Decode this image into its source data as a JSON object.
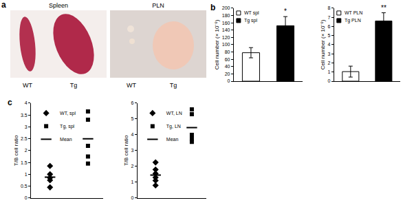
{
  "panel_a": {
    "label": "a",
    "images": [
      {
        "title": "Spleen",
        "labels": [
          "WT",
          "Tg"
        ]
      },
      {
        "title": "PLN",
        "labels": [
          "WT",
          "Tg"
        ]
      }
    ]
  },
  "chart_data": [
    {
      "type": "bar",
      "annotations": [
        {
          "text": "b"
        },
        {
          "text": "*",
          "series": "Tg spl"
        }
      ],
      "ylabel": "Cell number (× 10⁻⁶)",
      "categories": [
        null,
        null
      ],
      "series": [
        {
          "name": "WT spl",
          "color": "#ffffff",
          "values": [
            78,
            null
          ],
          "errors": [
            14,
            null
          ]
        },
        {
          "name": "Tg spl",
          "color": "#000000",
          "values": [
            null,
            152
          ],
          "errors": [
            null,
            25
          ]
        }
      ],
      "ylim": [
        0,
        200
      ],
      "yticks": [
        0,
        20,
        40,
        60,
        80,
        100,
        120,
        140,
        160,
        180,
        200
      ],
      "legend": "upper left",
      "tick_labels": "y"
    },
    {
      "type": "bar",
      "annotations": [
        {
          "text": "**",
          "series": "Tg PLN"
        }
      ],
      "ylabel": "Cell number (× 10⁻⁶)",
      "categories": [
        null,
        null
      ],
      "series": [
        {
          "name": "WT PLN",
          "color": "#ffffff",
          "values": [
            1.05,
            null
          ],
          "errors": [
            0.6,
            null
          ]
        },
        {
          "name": "Tg PLN",
          "color": "#000000",
          "values": [
            null,
            6.6
          ],
          "errors": [
            null,
            0.9
          ]
        }
      ],
      "ylim": [
        0,
        8
      ],
      "yticks": [
        0,
        1,
        2,
        3,
        4,
        5,
        6,
        7,
        8
      ],
      "legend": "upper left",
      "tick_labels": "y"
    },
    {
      "type": "scatter",
      "annotations": [
        {
          "text": "c"
        }
      ],
      "ylabel": "T/B cell ratio",
      "series": [
        {
          "name": "WT, spl",
          "marker": "diamond",
          "color": "#000000",
          "x": [
            1,
            1,
            1,
            1,
            1
          ],
          "values": [
            1.35,
            1.0,
            0.85,
            0.75,
            0.45
          ]
        },
        {
          "name": "Tg, spl",
          "marker": "square",
          "color": "#000000",
          "x": [
            2,
            2,
            2,
            2,
            2
          ],
          "values": [
            3.65,
            3.3,
            2.2,
            1.75,
            1.45
          ]
        },
        {
          "name": "Mean",
          "marker": "dash",
          "color": "#000000",
          "x": [
            1,
            2
          ],
          "values": [
            0.88,
            2.5
          ]
        }
      ],
      "xlim": [
        0.5,
        2.4
      ],
      "xticks": [],
      "ylim": [
        0,
        4
      ],
      "yticks": [
        0,
        0.5,
        1,
        1.5,
        2,
        2.5,
        3,
        3.5,
        4
      ],
      "legend": "upper left",
      "tick_labels": "y"
    },
    {
      "type": "scatter",
      "ylabel": "T/B cell ratio",
      "series": [
        {
          "name": "WT, LN",
          "marker": "diamond",
          "color": "#000000",
          "x": [
            1,
            1,
            1,
            1,
            1,
            1
          ],
          "values": [
            2.25,
            1.8,
            1.55,
            1.3,
            1.1,
            0.8
          ]
        },
        {
          "name": "Tg, LN",
          "marker": "square",
          "color": "#000000",
          "x": [
            2,
            2,
            2,
            2,
            2
          ],
          "values": [
            5.6,
            5.3,
            4.0,
            3.75,
            3.55
          ]
        },
        {
          "name": "Mean",
          "marker": "dash",
          "color": "#000000",
          "x": [
            1,
            2
          ],
          "values": [
            1.45,
            4.45
          ]
        }
      ],
      "xlim": [
        0.5,
        2.4
      ],
      "xticks": [],
      "ylim": [
        0,
        6
      ],
      "yticks": [
        0,
        1,
        2,
        3,
        4,
        5,
        6
      ],
      "legend": "upper left",
      "tick_labels": "y"
    }
  ]
}
